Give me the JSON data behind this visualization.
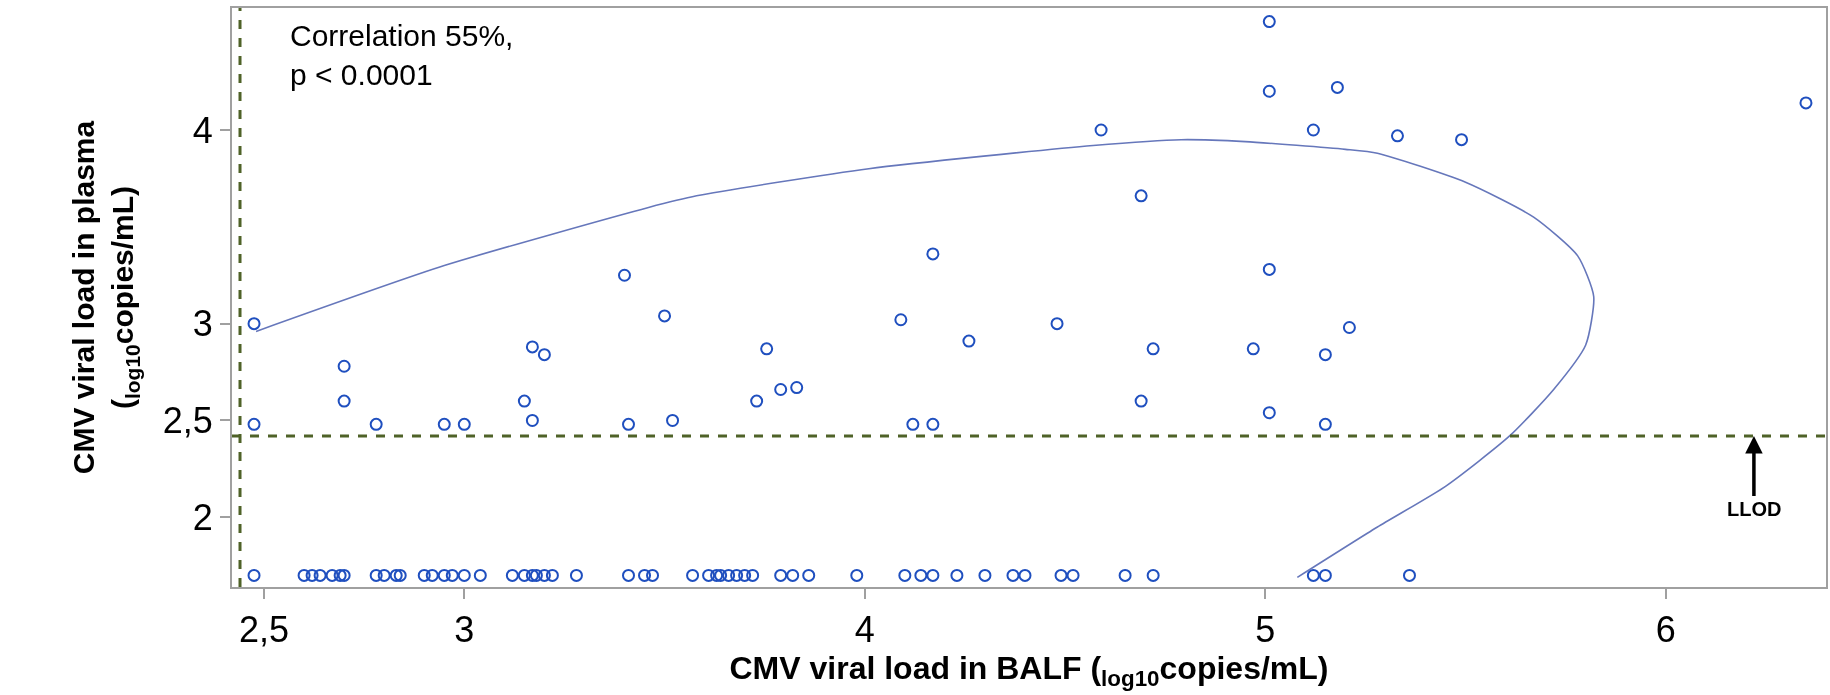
{
  "chart_data": {
    "type": "scatter",
    "xlabel": "CMV viral load in BALF ($_{log10}$copies/mL)",
    "ylabel": "CMV viral load in plasma\n($_{log10}$copies/mL)",
    "xlim": [
      2.42,
      6.4
    ],
    "ylim": [
      1.64,
      4.63
    ],
    "xticks": [
      {
        "value": 2.5,
        "label": "2,5"
      },
      3,
      4,
      5,
      6
    ],
    "yticks": [
      2,
      {
        "value": 2.5,
        "label": "2,5"
      },
      3,
      4
    ],
    "grid": false,
    "series": [
      {
        "marker": "circle",
        "color": "#1f4fbf",
        "x": [
          2.475,
          2.7,
          2.7,
          2.475,
          2.78,
          2.95,
          3.0,
          3.17,
          3.2,
          3.15,
          3.17,
          3.4,
          3.5,
          3.41,
          3.52,
          3.755,
          3.73,
          3.79,
          3.83,
          4.17,
          4.09,
          4.26,
          4.12,
          4.17,
          4.48,
          4.59,
          4.69,
          4.72,
          4.69,
          4.97,
          5.01,
          5.01,
          5.01,
          5.01,
          5.12,
          5.18,
          5.15,
          5.15,
          5.21,
          5.33,
          5.49,
          6.35,
          5.12,
          5.15,
          5.36,
          2.475,
          2.6,
          2.62,
          2.64,
          2.67,
          2.69,
          2.7,
          2.78,
          2.8,
          2.83,
          2.84,
          2.9,
          2.92,
          2.95,
          2.97,
          3.0,
          3.04,
          3.12,
          3.15,
          3.17,
          3.18,
          3.2,
          3.22,
          3.28,
          3.41,
          3.45,
          3.47,
          3.57,
          3.61,
          3.63,
          3.64,
          3.66,
          3.68,
          3.7,
          3.72,
          3.79,
          3.82,
          3.86,
          3.98,
          4.1,
          4.14,
          4.17,
          4.23,
          4.3,
          4.37,
          4.4,
          4.49,
          4.52,
          4.65,
          4.72
        ],
        "values": [
          3.0,
          2.78,
          2.6,
          2.48,
          2.48,
          2.48,
          2.48,
          2.88,
          2.84,
          2.6,
          2.5,
          3.25,
          3.04,
          2.48,
          2.5,
          2.87,
          2.6,
          2.66,
          2.67,
          3.36,
          3.02,
          2.91,
          2.48,
          2.48,
          3.0,
          4.0,
          3.66,
          2.87,
          2.6,
          2.87,
          4.56,
          4.2,
          3.28,
          2.54,
          4.0,
          4.22,
          2.84,
          2.48,
          2.98,
          3.97,
          3.95,
          4.14,
          1.7,
          1.7,
          1.7,
          1.7,
          1.7,
          1.7,
          1.7,
          1.7,
          1.7,
          1.7,
          1.7,
          1.7,
          1.7,
          1.7,
          1.7,
          1.7,
          1.7,
          1.7,
          1.7,
          1.7,
          1.7,
          1.7,
          1.7,
          1.7,
          1.7,
          1.7,
          1.7,
          1.7,
          1.7,
          1.7,
          1.7,
          1.7,
          1.7,
          1.7,
          1.7,
          1.7,
          1.7,
          1.7,
          1.7,
          1.7,
          1.7,
          1.7,
          1.7,
          1.7,
          1.7,
          1.7,
          1.7,
          1.7,
          1.7,
          1.7,
          1.7,
          1.7,
          1.7
        ]
      },
      {
        "type": "line",
        "marker": "none",
        "color": "#6677bb",
        "line_style": "solid",
        "x": [
          2.48,
          2.95,
          3.46,
          3.58,
          4.01,
          4.57,
          4.79,
          4.95,
          5.2,
          5.28,
          5.5,
          5.67,
          5.78,
          5.82,
          5.8,
          5.72,
          5.61,
          5.45,
          5.28,
          5.08
        ],
        "values": [
          2.96,
          3.3,
          3.6,
          3.66,
          3.8,
          3.92,
          3.95,
          3.94,
          3.9,
          3.88,
          3.73,
          3.55,
          3.35,
          3.14,
          2.89,
          2.66,
          2.42,
          2.16,
          1.95,
          1.69
        ]
      }
    ],
    "ref_lines": [
      {
        "axis": "x",
        "value": 2.44,
        "color": "#4f6228",
        "line_style": "dashed"
      },
      {
        "axis": "y",
        "value": 2.42,
        "color": "#4f6228",
        "line_style": "dashed"
      }
    ],
    "annotations": [
      "Correlation 55%,\np < 0.0001",
      {
        "text": "LLOD",
        "x": 6.22,
        "y": 2.42
      }
    ]
  }
}
